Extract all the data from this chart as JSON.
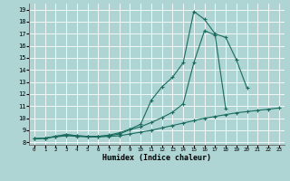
{
  "xlabel": "Humidex (Indice chaleur)",
  "bg_color": "#aed4d4",
  "grid_color": "#ffffff",
  "line_color": "#1a6b5e",
  "xlim": [
    -0.5,
    23.5
  ],
  "ylim": [
    7.8,
    19.5
  ],
  "xticks": [
    0,
    1,
    2,
    3,
    4,
    5,
    6,
    7,
    8,
    9,
    10,
    11,
    12,
    13,
    14,
    15,
    16,
    17,
    18,
    19,
    20,
    21,
    22,
    23
  ],
  "yticks": [
    8,
    9,
    10,
    11,
    12,
    13,
    14,
    15,
    16,
    17,
    18,
    19
  ],
  "curve1_x": [
    0,
    1,
    2,
    3,
    4,
    5,
    6,
    7,
    8,
    9,
    10,
    11,
    12,
    13,
    14,
    15,
    16,
    17,
    18,
    19,
    20
  ],
  "curve1_y": [
    8.3,
    8.35,
    8.5,
    8.65,
    8.55,
    8.5,
    8.5,
    8.6,
    8.8,
    9.1,
    9.5,
    11.5,
    12.6,
    13.4,
    14.6,
    18.85,
    18.2,
    17.0,
    16.7,
    14.85,
    12.5
  ],
  "curve2_x": [
    0,
    1,
    2,
    3,
    4,
    5,
    6,
    7,
    8,
    9,
    10,
    11,
    12,
    13,
    14,
    15,
    16,
    17,
    18
  ],
  "curve2_y": [
    8.3,
    8.35,
    8.5,
    8.65,
    8.55,
    8.5,
    8.5,
    8.55,
    8.7,
    9.05,
    9.3,
    9.65,
    10.05,
    10.5,
    11.2,
    14.6,
    17.25,
    16.9,
    10.8
  ],
  "curve3_x": [
    0,
    1,
    2,
    3,
    4,
    5,
    6,
    7,
    8,
    9,
    10,
    11,
    12,
    13,
    14,
    15,
    16,
    17,
    18,
    19,
    20,
    21,
    22,
    23
  ],
  "curve3_y": [
    8.3,
    8.35,
    8.45,
    8.55,
    8.5,
    8.45,
    8.45,
    8.5,
    8.55,
    8.7,
    8.85,
    9.0,
    9.2,
    9.4,
    9.6,
    9.8,
    10.0,
    10.15,
    10.3,
    10.45,
    10.55,
    10.65,
    10.75,
    10.85
  ]
}
